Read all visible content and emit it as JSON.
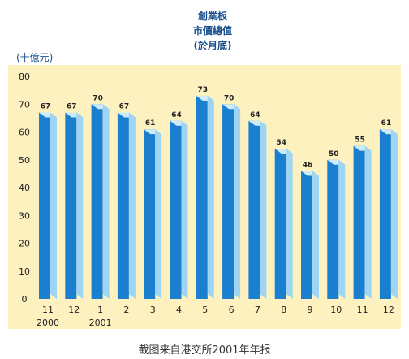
{
  "chart_data": {
    "type": "bar",
    "title_lines": [
      "創業板",
      "市價總值",
      "(於月底)"
    ],
    "y_unit_label": "(十億元)",
    "categories": [
      "11",
      "12",
      "1",
      "2",
      "3",
      "4",
      "5",
      "6",
      "7",
      "8",
      "9",
      "10",
      "11",
      "12"
    ],
    "year_labels": [
      {
        "index": 0,
        "label": "2000"
      },
      {
        "index": 2,
        "label": "2001"
      }
    ],
    "values": [
      67,
      67,
      70,
      67,
      61,
      64,
      73,
      70,
      64,
      54,
      46,
      50,
      55,
      61
    ],
    "ylim": [
      0,
      80
    ],
    "yticks": [
      0,
      10,
      20,
      30,
      40,
      50,
      60,
      70,
      80
    ],
    "grid": false,
    "colors": {
      "panel": "#fdf1bf",
      "bar_front": "#1b7fcf",
      "bar_side": "#9fd4f3",
      "bar_top": "#cfeaf9",
      "title": "#1a4f8e",
      "axis_text": "#222222"
    }
  },
  "caption": "截图来自港交所2001年年报"
}
